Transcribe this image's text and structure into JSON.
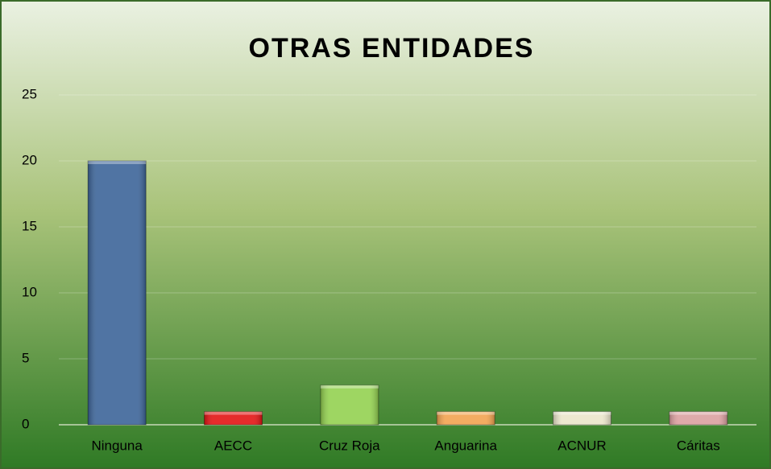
{
  "chart_data": {
    "type": "bar",
    "title": "OTRAS ENTIDADES",
    "categories": [
      "Ninguna",
      "AECC",
      "Cruz Roja",
      "Anguarina",
      "ACNUR",
      "Cáritas"
    ],
    "values": [
      20,
      1,
      3,
      1,
      1,
      1
    ],
    "colors": [
      "#3d6599",
      "#e31414",
      "#93d150",
      "#f2a350",
      "#ebe5cb",
      "#dba0a0"
    ],
    "ylim": [
      0,
      25
    ],
    "yticks": [
      0,
      5,
      10,
      15,
      20,
      25
    ],
    "grid": true
  }
}
